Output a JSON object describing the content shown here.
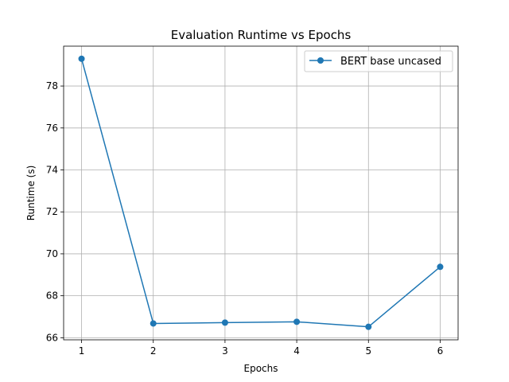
{
  "chart_data": {
    "type": "line",
    "title": "Evaluation Runtime vs Epochs",
    "xlabel": "Epochs",
    "ylabel": "Runtime (s)",
    "x": [
      1,
      2,
      3,
      4,
      5,
      6
    ],
    "series": [
      {
        "name": "BERT base uncased",
        "color": "#1f77b4",
        "marker": "circle",
        "values": [
          79.3,
          66.68,
          66.72,
          66.76,
          66.52,
          69.38
        ]
      }
    ],
    "xticks": [
      "1",
      "2",
      "3",
      "4",
      "5",
      "6"
    ],
    "yticks": [
      "66",
      "68",
      "70",
      "72",
      "74",
      "76",
      "78"
    ],
    "xlim": [
      0.75,
      6.25
    ],
    "ylim": [
      65.9,
      79.9
    ],
    "grid": true,
    "legend": "top-right"
  }
}
